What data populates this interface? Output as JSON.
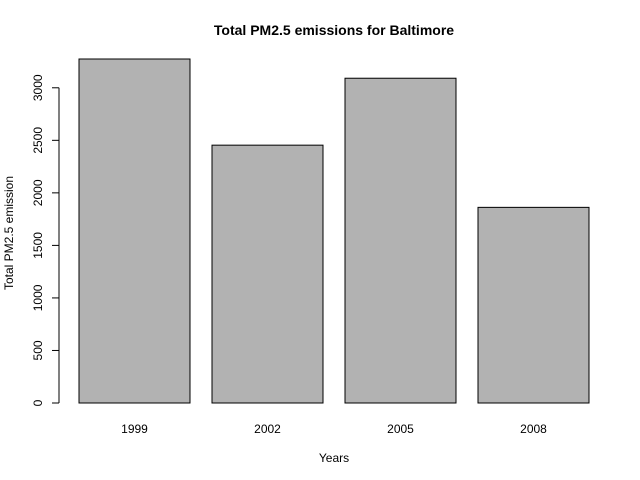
{
  "chart_data": {
    "type": "bar",
    "title": "Total PM2.5 emissions for Baltimore",
    "xlabel": "Years",
    "ylabel": "Total PM2.5 emission",
    "categories": [
      "1999",
      "2002",
      "2005",
      "2008"
    ],
    "values": [
      3274,
      2454,
      3091,
      1862
    ],
    "ylim": [
      0,
      3274
    ],
    "yticks": [
      0,
      500,
      1000,
      1500,
      2000,
      2500,
      3000
    ],
    "grid": false,
    "legend": "none",
    "bar_color": "#b2b2b2",
    "bar_border_color": "#000000"
  }
}
